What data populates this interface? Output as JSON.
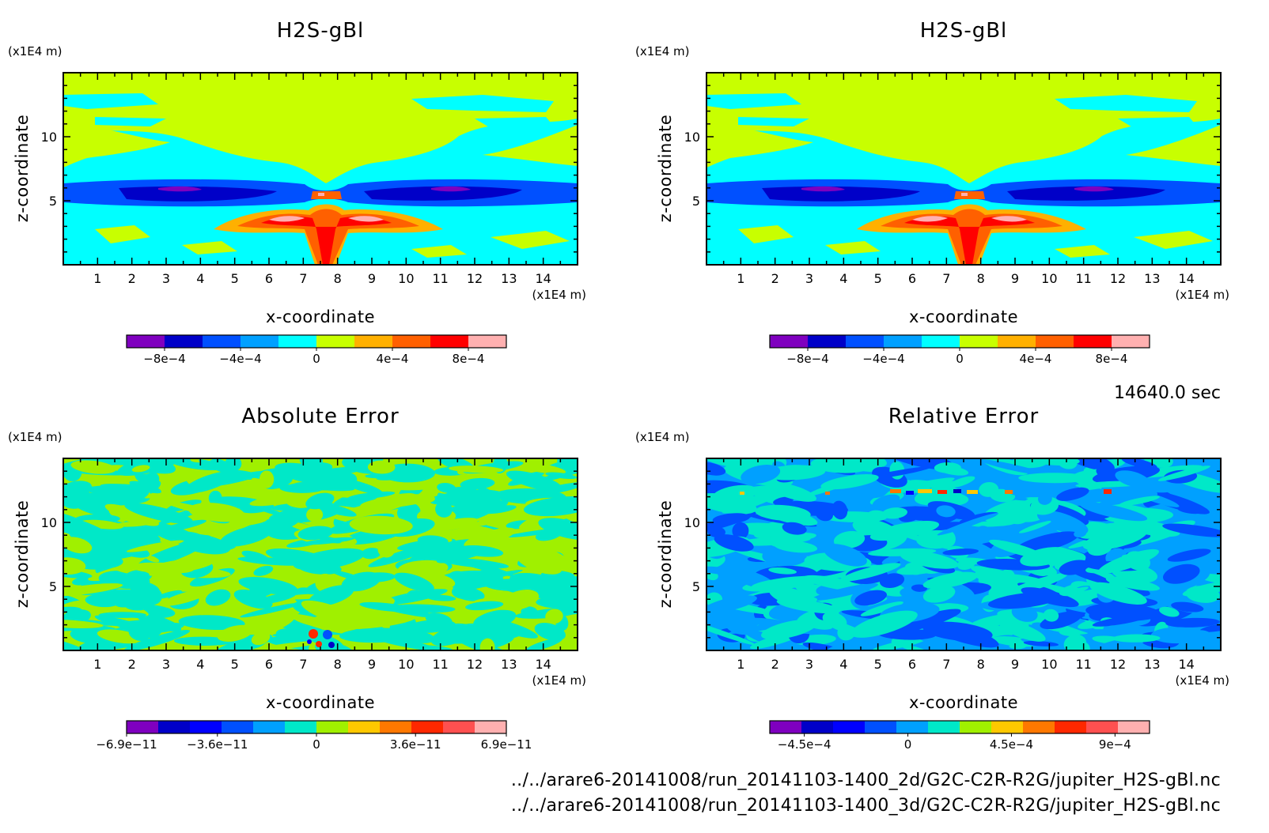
{
  "time_label": "14640.0 sec",
  "file_paths": [
    "../../arare6-20141008/run_20141103-1400_2d/G2C-C2R-R2G/jupiter_H2S-gBl.nc",
    "../../arare6-20141008/run_20141103-1400_3d/G2C-C2R-R2G/jupiter_H2S-gBl.nc"
  ],
  "chart_data": [
    {
      "type": "heatmap",
      "title": "H2S-gBl",
      "xlabel": "x-coordinate",
      "ylabel": "z-coordinate",
      "x_unit": "(x1E4 m)",
      "y_unit": "(x1E4 m)",
      "xlim": [
        0,
        15
      ],
      "ylim": [
        0,
        15
      ],
      "x_ticks": [
        1,
        2,
        3,
        4,
        5,
        6,
        7,
        8,
        9,
        10,
        11,
        12,
        13,
        14
      ],
      "y_ticks": [
        5,
        10
      ],
      "colorbar": {
        "colors": [
          "#7f00bf",
          "#0000c8",
          "#0050ff",
          "#00a0ff",
          "#00ffff",
          "#c8ff00",
          "#ffb000",
          "#ff6000",
          "#ff0000",
          "#ffb0b0"
        ],
        "tick_labels": [
          "-8e-4",
          "-4e-4",
          "0",
          "4e-4",
          "8e-4"
        ],
        "min": -0.001,
        "max": 0.001
      }
    },
    {
      "type": "heatmap",
      "title": "H2S-gBl",
      "xlabel": "x-coordinate",
      "ylabel": "z-coordinate",
      "x_unit": "(x1E4 m)",
      "y_unit": "(x1E4 m)",
      "xlim": [
        0,
        15
      ],
      "ylim": [
        0,
        15
      ],
      "x_ticks": [
        1,
        2,
        3,
        4,
        5,
        6,
        7,
        8,
        9,
        10,
        11,
        12,
        13,
        14
      ],
      "y_ticks": [
        5,
        10
      ],
      "colorbar": {
        "colors": [
          "#7f00bf",
          "#0000c8",
          "#0050ff",
          "#00a0ff",
          "#00ffff",
          "#c8ff00",
          "#ffb000",
          "#ff6000",
          "#ff0000",
          "#ffb0b0"
        ],
        "tick_labels": [
          "-8e-4",
          "-4e-4",
          "0",
          "4e-4",
          "8e-4"
        ],
        "min": -0.001,
        "max": 0.001
      }
    },
    {
      "type": "heatmap",
      "title": "Absolute Error",
      "xlabel": "x-coordinate",
      "ylabel": "z-coordinate",
      "x_unit": "(x1E4 m)",
      "y_unit": "(x1E4 m)",
      "xlim": [
        0,
        15
      ],
      "ylim": [
        0,
        15
      ],
      "x_ticks": [
        1,
        2,
        3,
        4,
        5,
        6,
        7,
        8,
        9,
        10,
        11,
        12,
        13,
        14
      ],
      "y_ticks": [
        5,
        10
      ],
      "colorbar": {
        "colors": [
          "#7f00bf",
          "#0000c8",
          "#0000ff",
          "#0050ff",
          "#00a0ff",
          "#00e8c8",
          "#a0f000",
          "#ffc800",
          "#ff7800",
          "#ff2800",
          "#ff5050",
          "#ffb0b0"
        ],
        "tick_labels": [
          "-6.9e-11",
          "-3.6e-11",
          "0",
          "3.6e-11",
          "6.9e-11"
        ],
        "min": -6.9e-11,
        "max": 6.9e-11
      }
    },
    {
      "type": "heatmap",
      "title": "Relative Error",
      "xlabel": "x-coordinate",
      "ylabel": "z-coordinate",
      "x_unit": "(x1E4 m)",
      "y_unit": "(x1E4 m)",
      "xlim": [
        0,
        15
      ],
      "ylim": [
        0,
        15
      ],
      "x_ticks": [
        1,
        2,
        3,
        4,
        5,
        6,
        7,
        8,
        9,
        10,
        11,
        12,
        13,
        14
      ],
      "y_ticks": [
        5,
        10
      ],
      "colorbar": {
        "colors": [
          "#7f00bf",
          "#0000c8",
          "#0000ff",
          "#0050ff",
          "#00a0ff",
          "#00e8c8",
          "#a0f000",
          "#ffc800",
          "#ff7800",
          "#ff2800",
          "#ff5050",
          "#ffb0b0"
        ],
        "tick_labels": [
          "-4.5e-4",
          "0",
          "4.5e-4",
          "9e-4"
        ],
        "min": -0.0006,
        "max": 0.00105
      }
    }
  ]
}
